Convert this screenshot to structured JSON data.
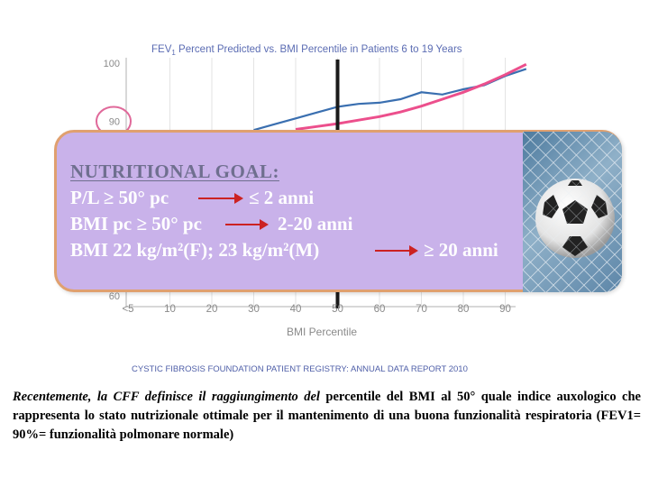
{
  "chart_data": {
    "type": "line",
    "title": "FEV1 Percent Predicted vs. BMI Percentile in Patients 6 to 19 Years",
    "title_parts": {
      "pre": "FEV",
      "sub": "1",
      "post": " Percent Predicted vs. BMI Percentile in Patients 6 to 19 Years"
    },
    "xlabel": "BMI Percentile",
    "ylabel": "",
    "x_ticks": [
      "<5",
      "10",
      "20",
      "30",
      "40",
      "50",
      "60",
      "70",
      "80",
      "90"
    ],
    "y_ticks_visible": [
      "100",
      "90",
      "60"
    ],
    "ylim": [
      55,
      102
    ],
    "highlighted_tick": "90",
    "reference_line_x": 50,
    "series": [
      {
        "color": "#3a6fb0",
        "x": [
          30,
          35,
          40,
          45,
          50,
          55,
          60,
          65,
          70,
          75,
          80,
          85,
          90,
          95
        ],
        "y": [
          88.5,
          89.5,
          90.5,
          91.5,
          92.5,
          93.0,
          93.2,
          93.8,
          95.0,
          94.6,
          95.5,
          96.2,
          97.8,
          99.0
        ]
      },
      {
        "color": "#ec4f8c",
        "x": [
          40,
          45,
          50,
          55,
          60,
          65,
          70,
          75,
          80,
          85,
          90,
          95
        ],
        "y": [
          88.6,
          89.1,
          89.6,
          90.2,
          90.8,
          91.6,
          92.6,
          93.8,
          95.0,
          96.4,
          98.0,
          99.8
        ]
      }
    ],
    "footer": "CYSTIC FIBROSIS FOUNDATION PATIENT REGISTRY: ANNUAL DATA REPORT 2010",
    "colors": {
      "axis": "#b0b0b0",
      "ticks": "#8a8a8a",
      "title": "#5b6cb3",
      "footer": "#4f5fa8",
      "reference": "#1a1a1a",
      "circle": "#e0699a"
    }
  },
  "overlay": {
    "title": "NUTRITIONAL GOAL:",
    "rows": [
      {
        "left": "P/L ≥ 50° pc",
        "right": "≤ 2 anni"
      },
      {
        "left": "BMI pc ≥ 50° pc",
        "right": "2-20 anni"
      },
      {
        "left": "BMI 22 kg/m²(F); 23 kg/m²(M)",
        "right": "≥ 20 anni"
      }
    ],
    "colors": {
      "box": "#c9b2ea",
      "border": "#e0a06f",
      "arrow": "#cc2222"
    }
  },
  "caption": {
    "lead": "Recentemente, la CFF definisce il raggiungimento del",
    "rest": " percentile del BMI al 50° quale indice auxologico che rappresenta lo stato nutrizionale ottimale per il mantenimento di una buona funzionalità respiratoria (FEV1= 90%= funzionalità polmonare normale)"
  }
}
